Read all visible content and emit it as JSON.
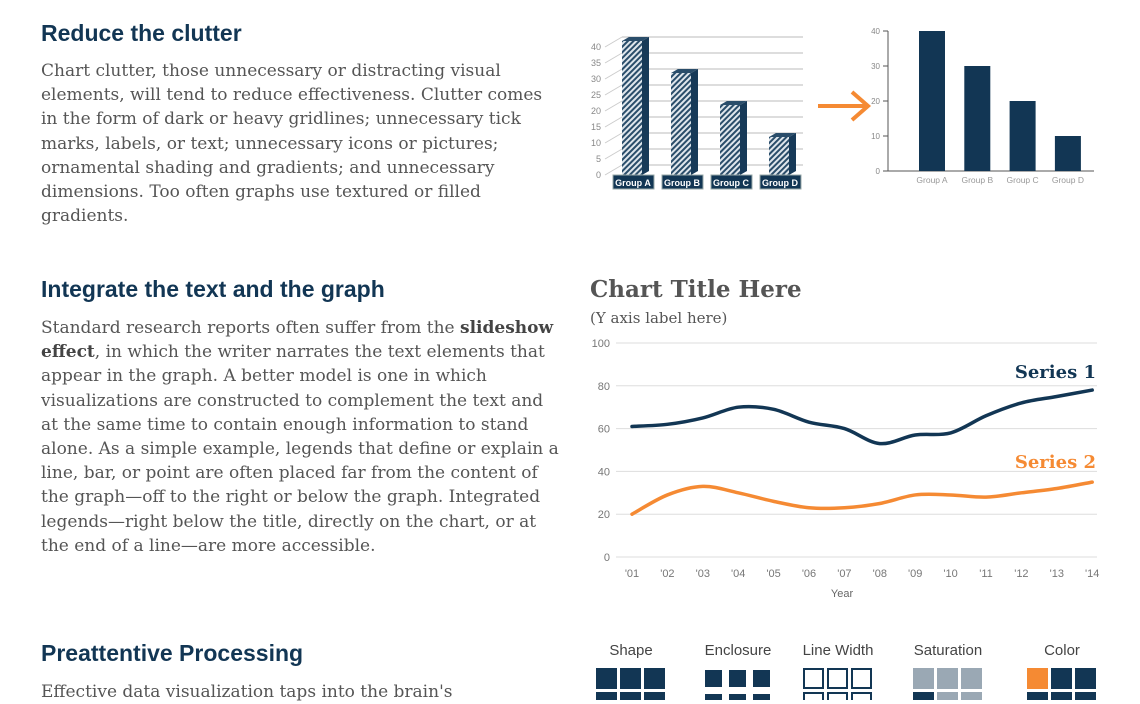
{
  "sections": [
    {
      "heading": "Reduce the clutter",
      "body": "Chart clutter, those unnecessary or distracting visual elements, will tend to reduce effectiveness. Clutter comes in the form of dark or heavy gridlines; unnecessary tick marks, labels, or text; unnecessary icons or pictures; ornamental shading and gradients; and unnecessary dimensions. Too often graphs use textured or filled gradients."
    },
    {
      "heading": "Integrate the text and the graph",
      "body_pre": "Standard research reports often suffer from the ",
      "body_bold": "slideshow effect",
      "body_post": ", in which the writer narrates the text elements that appear in the graph. A better model is one in which visualizations are constructed to complement the text and at the same time to contain enough information to stand alone. As a simple example, legends that define or explain a line, bar, or point are often placed far from the content of the graph—off to the right or below the graph. Integrated legends—right below the title, directly on the chart, or at the end of a line—are more accessible."
    },
    {
      "heading": "Preattentive Processing",
      "body": "Effective data visualization taps into the brain's"
    }
  ],
  "colors": {
    "navy": "#123654",
    "orange": "#f58a33",
    "gray": "#9aa8b4"
  },
  "chart_data": [
    {
      "type": "bar",
      "style": "3d-hatched",
      "categories": [
        "Group A",
        "Group B",
        "Group C",
        "Group D"
      ],
      "values": [
        40,
        30,
        20,
        10
      ],
      "ylim": [
        0,
        40
      ],
      "yticks": [
        0,
        5,
        10,
        15,
        20,
        25,
        30,
        35,
        40
      ],
      "grid": true
    },
    {
      "type": "bar",
      "categories": [
        "Group A",
        "Group B",
        "Group C",
        "Group D"
      ],
      "values": [
        40,
        30,
        20,
        10
      ],
      "ylim": [
        0,
        40
      ],
      "yticks": [
        0,
        10,
        20,
        30,
        40
      ],
      "grid": false
    },
    {
      "type": "line",
      "title": "Chart Title Here",
      "ylabel": "(Y axis label here)",
      "xlabel": "Year",
      "x": [
        "'01",
        "'02",
        "'03",
        "'04",
        "'05",
        "'06",
        "'07",
        "'08",
        "'09",
        "'10",
        "'11",
        "'12",
        "'13",
        "'14"
      ],
      "ylim": [
        0,
        100
      ],
      "yticks": [
        0,
        20,
        40,
        60,
        80,
        100
      ],
      "grid": true,
      "legend": "end-of-line",
      "series": [
        {
          "name": "Series 1",
          "color": "#123654",
          "values": [
            61,
            62,
            65,
            70,
            69,
            63,
            60,
            53,
            57,
            58,
            66,
            72,
            75,
            78
          ]
        },
        {
          "name": "Series 2",
          "color": "#f58a33",
          "values": [
            20,
            29,
            33,
            30,
            26,
            23,
            23,
            25,
            29,
            29,
            28,
            30,
            32,
            35
          ]
        }
      ]
    }
  ],
  "preattentive": [
    "Shape",
    "Enclosure",
    "Line Width",
    "Saturation",
    "Color"
  ]
}
